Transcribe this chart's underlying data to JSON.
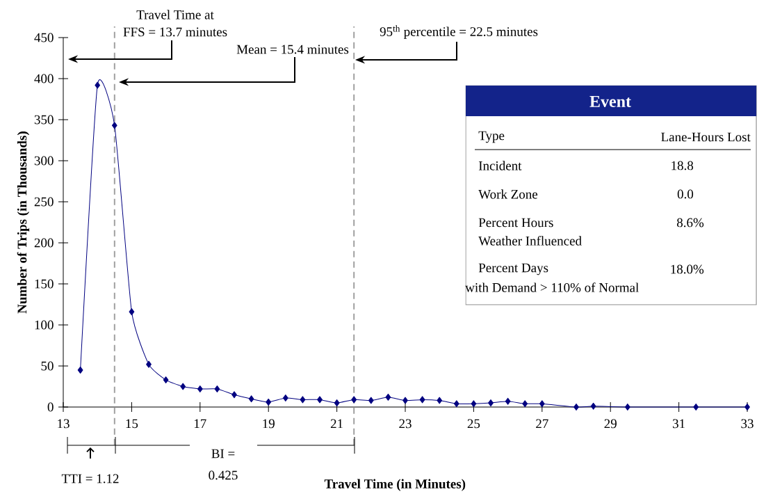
{
  "chart_data": {
    "type": "line",
    "xlabel": "Travel Time (in Minutes)",
    "ylabel": "Number of Trips (in Thousands)",
    "x": [
      13.5,
      14,
      14.5,
      15,
      15.5,
      16,
      16.5,
      17,
      17.5,
      18,
      18.5,
      19,
      19.5,
      20,
      20.5,
      21,
      21.5,
      22,
      22.5,
      23,
      23.5,
      24,
      24.5,
      25,
      25.5,
      26,
      26.5,
      27,
      28,
      28.5,
      29.5,
      31.5,
      33
    ],
    "series": [
      {
        "color": "#000080",
        "values": [
          45,
          392,
          343,
          116,
          52,
          33,
          25,
          22,
          22,
          15,
          10,
          6,
          11,
          9,
          9,
          5,
          9,
          8,
          12,
          8,
          9,
          8,
          4,
          4,
          5,
          7,
          4,
          4,
          0,
          1,
          0,
          0,
          0
        ]
      }
    ],
    "marker": "diamond",
    "line_style": "solid",
    "xlim": [
      13,
      33
    ],
    "ylim": [
      0,
      450
    ],
    "xticks": [
      13,
      15,
      17,
      19,
      21,
      23,
      25,
      27,
      29,
      31,
      33
    ],
    "yticks": [
      0,
      50,
      100,
      150,
      200,
      250,
      300,
      350,
      400,
      450
    ],
    "ref_lines": [
      {
        "axis": "x",
        "value": 14.5,
        "color": "#a0a0a0",
        "line_style": "dashed"
      },
      {
        "axis": "x",
        "value": 21.5,
        "color": "#a0a0a0",
        "line_style": "dashed"
      }
    ],
    "annotations": [
      "Travel Time at",
      "FFS = 13.7 minutes",
      "Mean = 15.4 minutes",
      "95$^{th}$ percentile = 22.5 minutes",
      "TTI = 1.12",
      "BI =",
      "0.425",
      "Event",
      "Type",
      "Lane-Hours Lost",
      "Incident",
      "18.8",
      "Work Zone",
      "0.0",
      "Percent Hours",
      "Weather Influenced",
      "8.6%",
      "Percent Days",
      "with Demand > 110% of Normal",
      "18.0%"
    ]
  }
}
